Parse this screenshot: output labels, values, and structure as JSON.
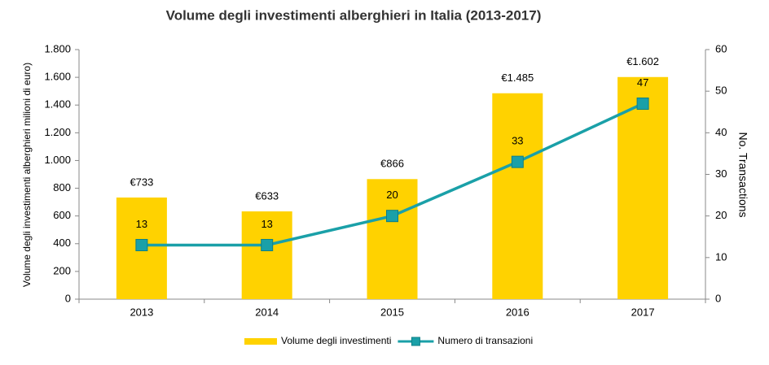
{
  "chart_data": {
    "type": "bar",
    "title": "Volume degli investimenti alberghieri in Italia (2013-2017)",
    "ylabel": "Volume degli investimenti alberghieri milioni di euro)",
    "y2label": "No. Transactions",
    "categories": [
      "2013",
      "2014",
      "2015",
      "2016",
      "2017"
    ],
    "series": [
      {
        "name": "Volume degli investimenti",
        "type": "bar",
        "color": "#ffd200",
        "values": [
          733,
          633,
          866,
          1485,
          1602
        ],
        "value_labels": [
          "€733",
          "€633",
          "€866",
          "€1.485",
          "€1.602"
        ]
      },
      {
        "name": "Numero di transazioni",
        "type": "line",
        "axis": "y2",
        "color": "#1aa0a8",
        "values": [
          13,
          13,
          20,
          33,
          47
        ]
      }
    ],
    "ylim": [
      0,
      1800
    ],
    "yticks": [
      0,
      200,
      400,
      600,
      800,
      {
        "value": 1000,
        "label": "1.000"
      },
      {
        "value": 1200,
        "label": "1.200"
      },
      {
        "value": 1400,
        "label": "1.400"
      },
      {
        "value": 1600,
        "label": "1.600"
      },
      {
        "value": 1800,
        "label": "1.800"
      }
    ],
    "y2lim": [
      0,
      60
    ],
    "y2ticks": [
      0,
      10,
      20,
      30,
      40,
      50,
      60
    ],
    "legend": "bottom"
  }
}
